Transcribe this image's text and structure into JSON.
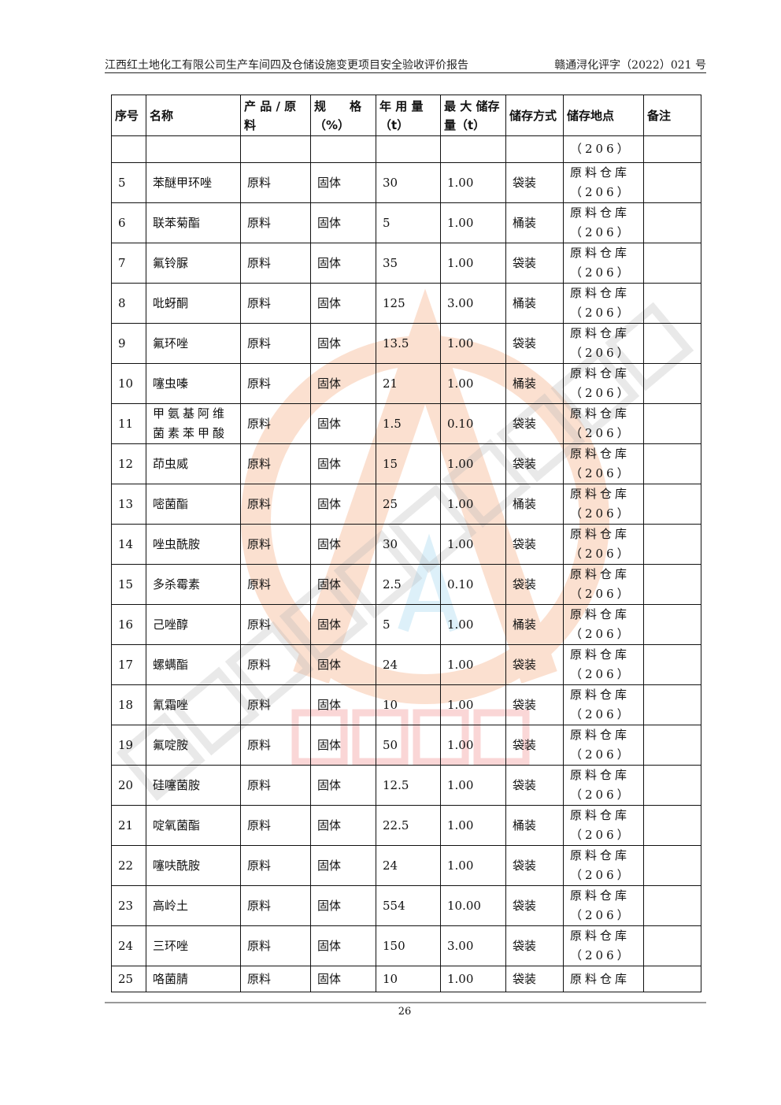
{
  "header": {
    "title": "江西红土地化工有限公司生产车间四及仓储设施变更项目安全验收评价报告",
    "doc_no": "赣通浔化评字（2022）021 号"
  },
  "table": {
    "columns": [
      "序号",
      "名称",
      "产 品 / 原料",
      "规　　格（%）",
      "年 用 量（t）",
      "最 大 储存量（t）",
      "储存方式",
      "储存地点",
      "备注"
    ],
    "rows": [
      [
        "",
        "",
        "",
        "",
        "",
        "",
        "",
        "（206）",
        ""
      ],
      [
        "5",
        "苯醚甲环唑",
        "原料",
        "固体",
        "30",
        "1.00",
        "袋装",
        "原料仓库（206）",
        ""
      ],
      [
        "6",
        "联苯菊酯",
        "原料",
        "固体",
        "5",
        "1.00",
        "桶装",
        "原料仓库（206）",
        ""
      ],
      [
        "7",
        "氟铃脲",
        "原料",
        "固体",
        "35",
        "1.00",
        "袋装",
        "原料仓库（206）",
        ""
      ],
      [
        "8",
        "吡蚜酮",
        "原料",
        "固体",
        "125",
        "3.00",
        "桶装",
        "原料仓库（206）",
        ""
      ],
      [
        "9",
        "氟环唑",
        "原料",
        "固体",
        "13.5",
        "1.00",
        "袋装",
        "原料仓库（206）",
        ""
      ],
      [
        "10",
        "噻虫嗪",
        "原料",
        "固体",
        "21",
        "1.00",
        "桶装",
        "原料仓库（206）",
        ""
      ],
      [
        "11",
        "甲氨基阿维菌素苯甲酸",
        "原料",
        "固体",
        "1.5",
        "0.10",
        "袋装",
        "原料仓库（206）",
        ""
      ],
      [
        "12",
        "茚虫威",
        "原料",
        "固体",
        "15",
        "1.00",
        "袋装",
        "原料仓库（206）",
        ""
      ],
      [
        "13",
        "嘧菌酯",
        "原料",
        "固体",
        "25",
        "1.00",
        "桶装",
        "原料仓库（206）",
        ""
      ],
      [
        "14",
        "唑虫酰胺",
        "原料",
        "固体",
        "30",
        "1.00",
        "袋装",
        "原料仓库（206）",
        ""
      ],
      [
        "15",
        "多杀霉素",
        "原料",
        "固体",
        "2.5",
        "0.10",
        "袋装",
        "原料仓库（206）",
        ""
      ],
      [
        "16",
        "己唑醇",
        "原料",
        "固体",
        "5",
        "1.00",
        "桶装",
        "原料仓库（206）",
        ""
      ],
      [
        "17",
        "螺螨酯",
        "原料",
        "固体",
        "24",
        "1.00",
        "袋装",
        "原料仓库（206）",
        ""
      ],
      [
        "18",
        "氰霜唑",
        "原料",
        "固体",
        "10",
        "1.00",
        "袋装",
        "原料仓库（206）",
        ""
      ],
      [
        "19",
        "氟啶胺",
        "原料",
        "固体",
        "50",
        "1.00",
        "袋装",
        "原料仓库（206）",
        ""
      ],
      [
        "20",
        "硅噻菌胺",
        "原料",
        "固体",
        "12.5",
        "1.00",
        "袋装",
        "原料仓库（206）",
        ""
      ],
      [
        "21",
        "啶氧菌酯",
        "原料",
        "固体",
        "22.5",
        "1.00",
        "桶装",
        "原料仓库（206）",
        ""
      ],
      [
        "22",
        "噻呋酰胺",
        "原料",
        "固体",
        "24",
        "1.00",
        "袋装",
        "原料仓库（206）",
        ""
      ],
      [
        "23",
        "高岭土",
        "原料",
        "固体",
        "554",
        "10.00",
        "袋装",
        "原料仓库（206）",
        ""
      ],
      [
        "24",
        "三环唑",
        "原料",
        "固体",
        "150",
        "3.00",
        "袋装",
        "原料仓库（206）",
        ""
      ],
      [
        "25",
        "咯菌腈",
        "原料",
        "固体",
        "10",
        "1.00",
        "袋装",
        "原料仓库",
        ""
      ]
    ]
  },
  "footer": {
    "page_number": "26"
  },
  "watermark": {
    "company_text": "江西通安安全评价有限公司",
    "stamp_text": "江西通安",
    "logo_color": "#f5a77a",
    "stamp_color": "#f28b8b",
    "text_color": "#b8b8b8"
  }
}
